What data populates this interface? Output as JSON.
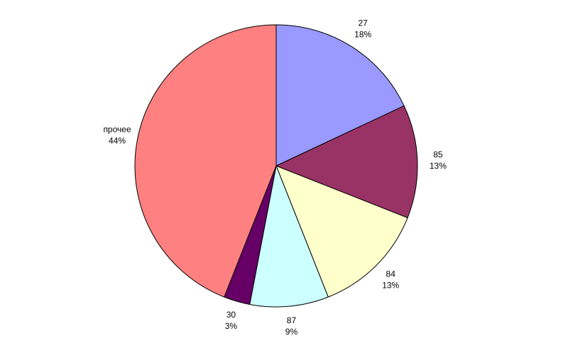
{
  "chart_data": {
    "type": "pie",
    "categories": [
      "27",
      "85",
      "84",
      "87",
      "30",
      "прочее"
    ],
    "values": [
      18,
      13,
      13,
      9,
      3,
      44
    ],
    "value_labels": [
      "18%",
      "13%",
      "13%",
      "9%",
      "3%",
      "44%"
    ],
    "colors": [
      "#9999ff",
      "#993366",
      "#ffffcc",
      "#ccffff",
      "#660066",
      "#ff8080"
    ]
  }
}
